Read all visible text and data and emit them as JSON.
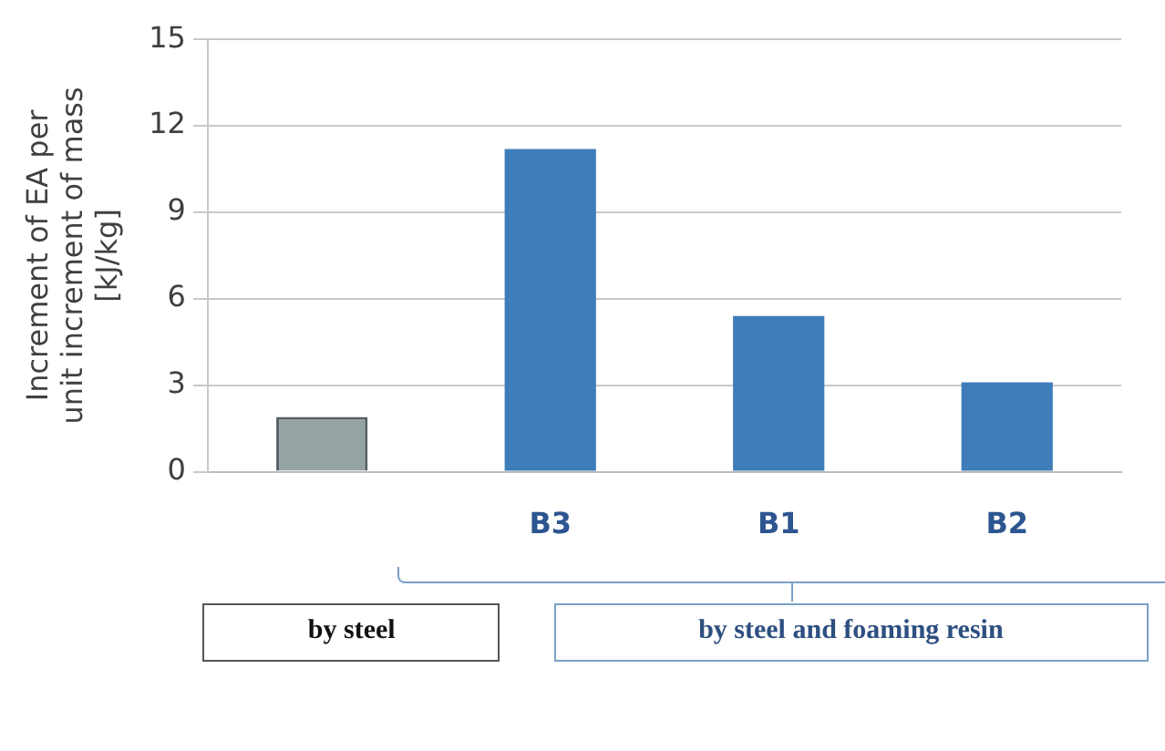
{
  "chart_data": {
    "type": "bar",
    "ylabel": "Increment of EA per\nunit increment of mass\n[kJ/kg]",
    "categories": [
      null,
      "B3",
      "B1",
      "B2"
    ],
    "values": [
      1.9,
      11.2,
      5.4,
      3.1
    ],
    "colors": [
      "#96a3a5",
      "#3e7dba",
      "#3e7dba",
      "#3e7dba"
    ],
    "ylim": [
      0,
      15
    ],
    "yticks": [
      0,
      3,
      6,
      9,
      12,
      15
    ],
    "grid": "y",
    "annotations": [
      "by steel",
      "by steel and foaming resin"
    ]
  }
}
